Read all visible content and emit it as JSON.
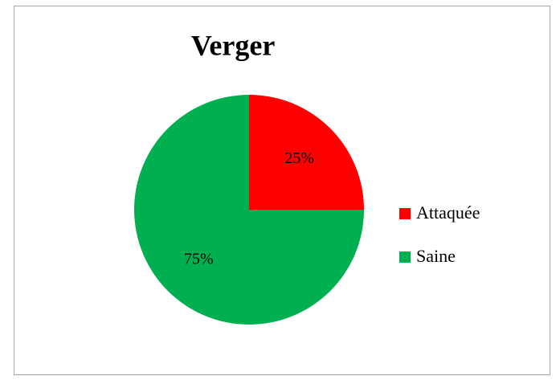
{
  "chart_data": {
    "type": "pie",
    "title": "Verger",
    "categories": [
      "Attaquée",
      "Saine"
    ],
    "values": [
      25,
      75
    ],
    "value_labels": [
      "25%",
      "75%"
    ],
    "colors": [
      "#ff0000",
      "#00b050"
    ],
    "legend": "right"
  }
}
